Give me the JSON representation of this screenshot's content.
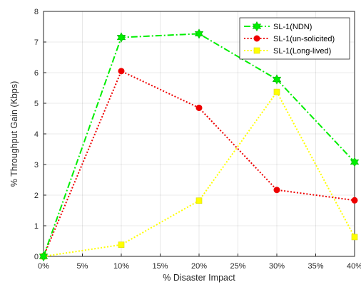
{
  "chart_data": {
    "type": "line",
    "xlabel": "% Disaster Impact",
    "ylabel": "% Throughput Gain (Kbps)",
    "x": [
      0,
      10,
      20,
      30,
      40
    ],
    "xticks": [
      0,
      5,
      10,
      15,
      20,
      25,
      30,
      35,
      40
    ],
    "xtick_labels": [
      "0%",
      "5%",
      "10%",
      "15%",
      "20%",
      "25%",
      "30%",
      "35%",
      "40%"
    ],
    "xlim": [
      0,
      40
    ],
    "ylim": [
      0,
      8
    ],
    "yticks": [
      0,
      1,
      2,
      3,
      4,
      5,
      6,
      7,
      8
    ],
    "ytick_labels": [
      "0",
      "1",
      "2",
      "3",
      "4",
      "5",
      "6",
      "7",
      "8"
    ],
    "grid": true,
    "legend_position": "top-right",
    "series": [
      {
        "name": "SL-1(NDN)",
        "values": [
          0,
          7.15,
          7.27,
          5.78,
          3.08
        ],
        "color": "#00ee00",
        "marker": "hexagram",
        "line_style": "dash-dot"
      },
      {
        "name": "SL-1(un-solicited)",
        "values": [
          0,
          6.05,
          4.85,
          2.17,
          1.83
        ],
        "color": "#ee0000",
        "marker": "circle",
        "line_style": "dotted"
      },
      {
        "name": "SL-1(Long-lived)",
        "values": [
          0,
          0.38,
          1.82,
          5.37,
          0.63
        ],
        "color": "#ffff00",
        "marker": "square",
        "line_style": "dotted"
      }
    ]
  }
}
